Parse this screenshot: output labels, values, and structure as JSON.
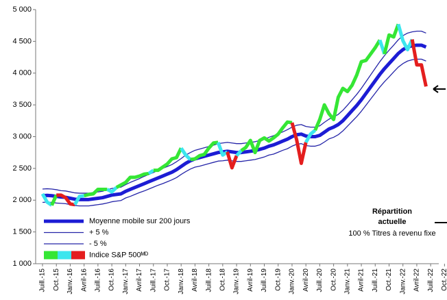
{
  "chart_data": {
    "type": "line",
    "categories": [
      "Juill.-15",
      null,
      null,
      "Oct.-15",
      null,
      null,
      "Janv.-16",
      null,
      null,
      "Avril-16",
      null,
      null,
      "Juill.-16",
      null,
      null,
      "Oct.-16",
      null,
      null,
      "Janv.-17",
      null,
      null,
      "Avril-17",
      null,
      null,
      "Juill.-17",
      null,
      null,
      "Oct.-17",
      null,
      null,
      "Janv.-18",
      null,
      null,
      "Avril-18",
      null,
      null,
      "Juill.-18",
      null,
      null,
      "Oct.-18",
      null,
      null,
      "Janv.-19",
      null,
      null,
      "Avril-19",
      null,
      null,
      "Juill.-19",
      null,
      null,
      "Oct.-19",
      null,
      null,
      "Janv.-20",
      null,
      null,
      "Avril-20",
      null,
      null,
      "Juill.-20",
      null,
      null,
      "Oct.-20",
      null,
      null,
      "Janv.-21",
      null,
      null,
      "Avril-21",
      null,
      null,
      "Juill.-21",
      null,
      null,
      "Oct.-21",
      null,
      null,
      "Janv.-22",
      null,
      null,
      "Avril-22",
      null,
      null,
      "Juill.-22",
      null,
      null,
      "Oct.-22"
    ],
    "series": [
      {
        "name": "Moyenne mobile sur 200 jours",
        "color": "#1c1cd4",
        "width": 5,
        "values": [
          2070,
          2075,
          2070,
          2060,
          2050,
          2045,
          2030,
          2015,
          2010,
          2010,
          2010,
          2020,
          2030,
          2040,
          2060,
          2080,
          2090,
          2100,
          2140,
          2170,
          2200,
          2230,
          2260,
          2290,
          2320,
          2350,
          2380,
          2410,
          2440,
          2480,
          2530,
          2580,
          2620,
          2650,
          2670,
          2690,
          2710,
          2730,
          2750,
          2760,
          2770,
          2760,
          2750,
          2750,
          2760,
          2770,
          2780,
          2800,
          2820,
          2850,
          2870,
          2900,
          2930,
          2960,
          3000,
          3030,
          3040,
          3010,
          3000,
          3000,
          3020,
          3070,
          3120,
          3150,
          3190,
          3250,
          3330,
          3410,
          3490,
          3580,
          3680,
          3780,
          3880,
          3980,
          4070,
          4150,
          4230,
          4310,
          4370,
          4410,
          4430,
          4440,
          4440,
          4410,
          null,
          null,
          null,
          null
        ]
      },
      {
        "name": "+ 5 %",
        "color": "#2424a8",
        "width": 1.3,
        "values": [
          2175,
          2180,
          2175,
          2165,
          2150,
          2145,
          2130,
          2115,
          2110,
          2110,
          2110,
          2120,
          2130,
          2140,
          2165,
          2185,
          2195,
          2205,
          2245,
          2280,
          2310,
          2340,
          2375,
          2405,
          2435,
          2470,
          2500,
          2530,
          2560,
          2605,
          2655,
          2710,
          2750,
          2785,
          2805,
          2825,
          2845,
          2865,
          2890,
          2900,
          2910,
          2900,
          2890,
          2890,
          2900,
          2910,
          2920,
          2940,
          2960,
          2990,
          3015,
          3045,
          3075,
          3110,
          3150,
          3180,
          3190,
          3160,
          3150,
          3150,
          3170,
          3225,
          3275,
          3310,
          3350,
          3415,
          3495,
          3580,
          3665,
          3760,
          3865,
          3970,
          4075,
          4180,
          4275,
          4360,
          4440,
          4525,
          4590,
          4630,
          4650,
          4660,
          4660,
          4630,
          null,
          null,
          null,
          null
        ]
      },
      {
        "name": "- 5 %",
        "color": "#2424a8",
        "width": 1.3,
        "values": [
          1965,
          1970,
          1965,
          1955,
          1950,
          1945,
          1930,
          1915,
          1910,
          1910,
          1910,
          1920,
          1930,
          1940,
          1955,
          1975,
          1985,
          1995,
          2035,
          2060,
          2090,
          2120,
          2145,
          2175,
          2205,
          2235,
          2260,
          2290,
          2320,
          2355,
          2405,
          2450,
          2490,
          2520,
          2535,
          2555,
          2575,
          2595,
          2615,
          2620,
          2630,
          2620,
          2610,
          2610,
          2620,
          2630,
          2640,
          2660,
          2680,
          2710,
          2725,
          2755,
          2785,
          2810,
          2850,
          2880,
          2890,
          2860,
          2850,
          2850,
          2870,
          2915,
          2965,
          2990,
          3030,
          3090,
          3165,
          3240,
          3315,
          3400,
          3495,
          3590,
          3685,
          3780,
          3865,
          3940,
          4020,
          4095,
          4150,
          4190,
          4210,
          4220,
          4220,
          4190,
          null,
          null,
          null,
          null
        ]
      },
      {
        "name": "Indice S&P 500ᴹᴰ",
        "colors": [
          "#35e635",
          "#3ce6ee",
          "#e41e1e"
        ],
        "width": 5,
        "values": [
          2100,
          1970,
          1920,
          2080,
          2080,
          2040,
          1940,
          1930,
          2060,
          2070,
          2090,
          2100,
          2170,
          2170,
          2170,
          2130,
          2200,
          2240,
          2280,
          2360,
          2360,
          2380,
          2410,
          2420,
          2470,
          2470,
          2520,
          2570,
          2650,
          2670,
          2820,
          2710,
          2640,
          2650,
          2700,
          2720,
          2820,
          2900,
          2910,
          2710,
          2760,
          2510,
          2700,
          2780,
          2830,
          2940,
          2750,
          2940,
          2980,
          2930,
          2980,
          3040,
          3140,
          3230,
          3220,
          2950,
          2580,
          2910,
          3040,
          3100,
          3270,
          3500,
          3360,
          3270,
          3620,
          3760,
          3710,
          3810,
          3970,
          4180,
          4200,
          4300,
          4400,
          4520,
          4300,
          4600,
          4570,
          4770,
          4510,
          4370,
          4530,
          4130,
          4130,
          3790,
          null,
          null,
          null,
          null
        ],
        "point_colors": [
          "#3ce6ee",
          "#3ce6ee",
          "#3ce6ee",
          "#35e635",
          "#e41e1e",
          "#e41e1e",
          "#e41e1e",
          "#e41e1e",
          "#3ce6ee",
          "#3ce6ee",
          "#35e635",
          "#35e635",
          "#35e635",
          "#35e635",
          "#35e635",
          "#3ce6ee",
          "#3ce6ee",
          "#35e635",
          "#35e635",
          "#35e635",
          "#35e635",
          "#35e635",
          "#35e635",
          "#35e635",
          "#3ce6ee",
          "#35e635",
          "#35e635",
          "#35e635",
          "#35e635",
          "#35e635",
          "#35e635",
          "#3ce6ee",
          "#3ce6ee",
          "#35e635",
          "#35e635",
          "#35e635",
          "#35e635",
          "#35e635",
          "#35e635",
          "#3ce6ee",
          "#3ce6ee",
          "#e41e1e",
          "#e41e1e",
          "#3ce6ee",
          "#35e635",
          "#35e635",
          "#35e635",
          "#35e635",
          "#35e635",
          "#35e635",
          "#35e635",
          "#35e635",
          "#35e635",
          "#35e635",
          "#35e635",
          "#e41e1e",
          "#e41e1e",
          "#e41e1e",
          "#3ce6ee",
          "#3ce6ee",
          "#35e635",
          "#35e635",
          "#35e635",
          "#35e635",
          "#35e635",
          "#35e635",
          "#35e635",
          "#35e635",
          "#35e635",
          "#35e635",
          "#35e635",
          "#35e635",
          "#35e635",
          "#35e635",
          "#3ce6ee",
          "#35e635",
          "#35e635",
          "#35e635",
          "#3ce6ee",
          "#3ce6ee",
          "#3ce6ee",
          "#e41e1e",
          "#e41e1e",
          "#e41e1e",
          null,
          null,
          null,
          null
        ]
      }
    ],
    "ylim": [
      1000,
      5000
    ],
    "yticks": [
      {
        "value": 1000,
        "label": "1 000"
      },
      {
        "value": 1500,
        "label": "1 500"
      },
      {
        "value": 2000,
        "label": "2 000"
      },
      {
        "value": 2500,
        "label": "2 500"
      },
      {
        "value": 3000,
        "label": "3 000"
      },
      {
        "value": 3500,
        "label": "3 500"
      },
      {
        "value": 4000,
        "label": "4 000"
      },
      {
        "value": 4500,
        "label": "4 500"
      },
      {
        "value": 5000,
        "label": "5 000"
      }
    ],
    "annotations": [
      "Répartition",
      "actuelle",
      "100 % Titres à revenu fixe"
    ]
  }
}
